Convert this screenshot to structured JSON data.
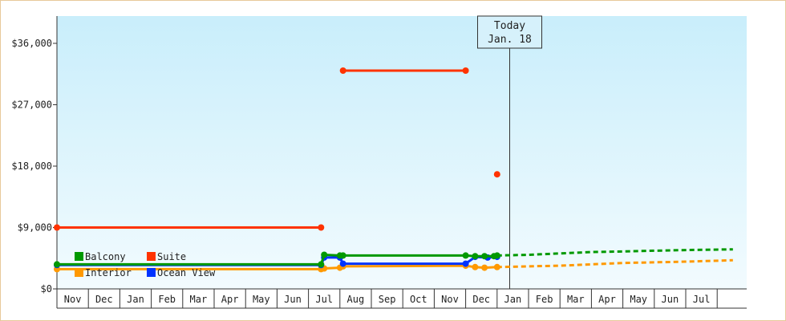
{
  "chart_data": {
    "type": "line",
    "title": "",
    "xlabel": "",
    "ylabel": "",
    "ylim": [
      0,
      36000
    ],
    "yticks": [
      {
        "value": 0,
        "label": "$0"
      },
      {
        "value": 9000,
        "label": "$9,000"
      },
      {
        "value": 18000,
        "label": "$18,000"
      },
      {
        "value": 27000,
        "label": "$27,000"
      },
      {
        "value": 36000,
        "label": "$36,000"
      }
    ],
    "months": [
      "Nov",
      "Dec",
      "Jan",
      "Feb",
      "Mar",
      "Apr",
      "May",
      "Jun",
      "Jul",
      "Aug",
      "Sep",
      "Oct",
      "Nov",
      "Dec",
      "Jan",
      "Feb",
      "Mar",
      "Apr",
      "May",
      "Jun",
      "Jul"
    ],
    "today": {
      "line1": "Today",
      "line2": "Jan. 18",
      "x": 14.4
    },
    "legend": {
      "placement": "bottom-left"
    },
    "series": [
      {
        "name": "Suite",
        "color": "#ff3300",
        "segments": [
          [
            [
              0,
              9000
            ],
            [
              8.4,
              9000
            ]
          ],
          [
            [
              9.1,
              32000
            ],
            [
              13.0,
              32000
            ]
          ],
          [
            [
              14.0,
              16800
            ]
          ]
        ],
        "forecast": []
      },
      {
        "name": "Interior",
        "color": "#ff9900",
        "segments": [
          [
            [
              0,
              2900
            ],
            [
              8.4,
              2900
            ],
            [
              8.5,
              3000
            ],
            [
              9.0,
              3100
            ],
            [
              9.1,
              3300
            ],
            [
              13.0,
              3400
            ],
            [
              13.3,
              3200
            ],
            [
              13.6,
              3100
            ],
            [
              14.0,
              3200
            ]
          ]
        ],
        "forecast": [
          [
            14.0,
            3200
          ],
          [
            15.0,
            3300
          ],
          [
            16.0,
            3400
          ],
          [
            17.0,
            3600
          ],
          [
            18.0,
            3800
          ],
          [
            19.0,
            3900
          ],
          [
            20.0,
            4000
          ],
          [
            21.5,
            4200
          ]
        ]
      },
      {
        "name": "Ocean View",
        "color": "#0033ff",
        "segments": [
          [
            [
              0,
              3500
            ],
            [
              8.4,
              3500
            ],
            [
              8.5,
              4600
            ],
            [
              9.0,
              4600
            ],
            [
              9.1,
              3700
            ],
            [
              13.0,
              3700
            ],
            [
              13.3,
              4700
            ],
            [
              13.7,
              4600
            ],
            [
              14.0,
              4700
            ]
          ]
        ],
        "forecast": []
      },
      {
        "name": "Balcony",
        "color": "#009900",
        "segments": [
          [
            [
              0,
              3600
            ],
            [
              8.4,
              3600
            ],
            [
              8.5,
              5000
            ],
            [
              9.0,
              4900
            ],
            [
              9.1,
              4900
            ],
            [
              13.0,
              4900
            ],
            [
              13.3,
              4800
            ],
            [
              13.6,
              4800
            ],
            [
              13.9,
              4800
            ],
            [
              14.0,
              4900
            ]
          ]
        ],
        "forecast": [
          [
            14.0,
            4900
          ],
          [
            15.0,
            5000
          ],
          [
            16.0,
            5200
          ],
          [
            17.0,
            5400
          ],
          [
            18.0,
            5500
          ],
          [
            19.0,
            5600
          ],
          [
            20.0,
            5700
          ],
          [
            21.5,
            5800
          ]
        ]
      }
    ]
  }
}
